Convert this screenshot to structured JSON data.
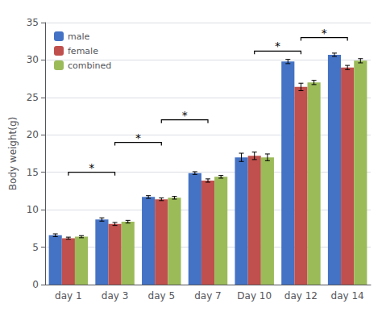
{
  "chart_data": {
    "type": "bar",
    "categories": [
      "day 1",
      "day 3",
      "day 5",
      "day 7",
      "Day 10",
      "day 12",
      "day 14"
    ],
    "series": [
      {
        "name": "male",
        "color": "#4472C4",
        "values": [
          6.6,
          8.7,
          11.7,
          14.9,
          17.0,
          29.8,
          30.7
        ],
        "errors": [
          0.18,
          0.22,
          0.18,
          0.18,
          0.55,
          0.28,
          0.22
        ]
      },
      {
        "name": "female",
        "color": "#C0504D",
        "values": [
          6.2,
          8.1,
          11.4,
          13.9,
          17.2,
          26.4,
          29.0
        ],
        "errors": [
          0.14,
          0.2,
          0.18,
          0.22,
          0.5,
          0.5,
          0.28
        ]
      },
      {
        "name": "combined",
        "color": "#9BBB59",
        "values": [
          6.4,
          8.4,
          11.6,
          14.4,
          17.0,
          27.0,
          29.9
        ],
        "errors": [
          0.14,
          0.18,
          0.18,
          0.18,
          0.45,
          0.28,
          0.28
        ]
      }
    ],
    "ylabel": "Body weight(g)",
    "ylim": [
      0,
      35
    ],
    "yticks": [
      0,
      5,
      10,
      15,
      20,
      25,
      30,
      35
    ],
    "grid": true,
    "legend": "upper left",
    "annotations": [
      {
        "text": "*",
        "from": "day 1",
        "to": "day 3",
        "y": 15.0
      },
      {
        "text": "*",
        "from": "day 3",
        "to": "day 5",
        "y": 19.0
      },
      {
        "text": "*",
        "from": "day 5",
        "to": "day 7",
        "y": 22.0
      },
      {
        "text": "*",
        "from": "Day 10",
        "to": "day 12",
        "y": 31.2
      },
      {
        "text": "*",
        "from": "day 12",
        "to": "day 14",
        "y": 33.0
      }
    ]
  }
}
